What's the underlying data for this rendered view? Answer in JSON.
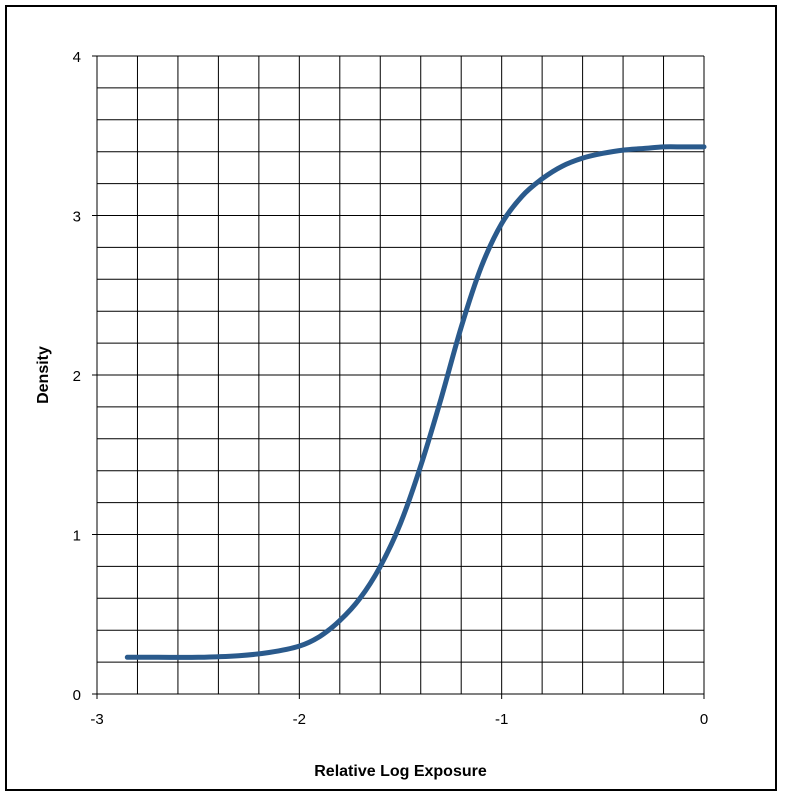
{
  "chart_data": {
    "type": "line",
    "title": "",
    "xlabel": "Relative Log Exposure",
    "ylabel": "Density",
    "xlim": [
      -3,
      0
    ],
    "ylim": [
      0,
      4
    ],
    "x_ticks": [
      "-3",
      "-2",
      "-1",
      "0"
    ],
    "y_ticks": [
      "0",
      "1",
      "2",
      "3",
      "4"
    ],
    "grid": true,
    "legend": "none",
    "colors": {
      "line": "#2a5a8c",
      "grid": "#000000"
    },
    "series": [
      {
        "x": [
          -2.85,
          -2.7,
          -2.5,
          -2.3,
          -2.15,
          -2.0,
          -1.9,
          -1.8,
          -1.7,
          -1.6,
          -1.5,
          -1.4,
          -1.3,
          -1.2,
          -1.1,
          -1.0,
          -0.9,
          -0.8,
          -0.7,
          -0.6,
          -0.5,
          -0.4,
          -0.3,
          -0.2,
          -0.1,
          0.0
        ],
        "y": [
          0.23,
          0.23,
          0.23,
          0.24,
          0.26,
          0.3,
          0.36,
          0.46,
          0.6,
          0.8,
          1.07,
          1.43,
          1.85,
          2.3,
          2.68,
          2.95,
          3.12,
          3.23,
          3.31,
          3.36,
          3.39,
          3.41,
          3.42,
          3.43,
          3.43,
          3.43
        ]
      }
    ]
  }
}
